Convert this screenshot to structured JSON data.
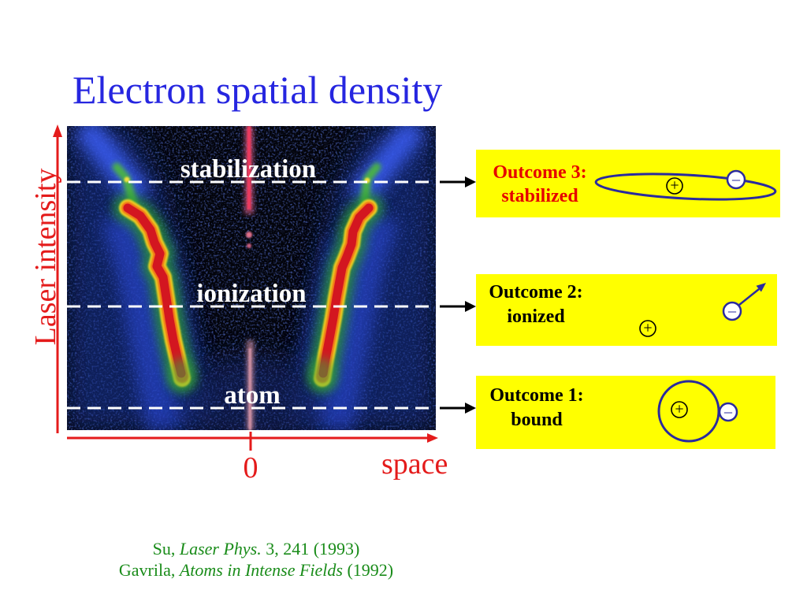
{
  "slide": {
    "title": "Electron spatial density"
  },
  "density_map": {
    "level_labels": [
      "stabilization",
      "ionization",
      "atom"
    ]
  },
  "axes": {
    "y_label": "Laser intensity",
    "x_label": "space",
    "x_origin_tick": "0"
  },
  "outcomes": [
    {
      "heading": "Outcome 3:",
      "state": "stabilized"
    },
    {
      "heading": "Outcome 2:",
      "state": "ionized"
    },
    {
      "heading": "Outcome 1:",
      "state": "bound"
    }
  ],
  "charges": {
    "nucleus": "+",
    "electron": "–"
  },
  "citations": [
    {
      "author": "Su,",
      "source": "Laser Phys.",
      "details": "3, 241 (1993)"
    },
    {
      "author": "Gavrila,",
      "source": "Atoms in Intense Fields",
      "details": "(1992)"
    }
  ],
  "colors": {
    "title": "#2626e0",
    "axis": "#e41b1b",
    "outcome_box": "#ffff00",
    "outcome3_text": "#e60000",
    "outcome_text": "#000000",
    "orbit": "#2a2a9e",
    "electron_fill": "#ffffff",
    "citation": "#1a8c1a",
    "map_label": "#ffffff"
  }
}
